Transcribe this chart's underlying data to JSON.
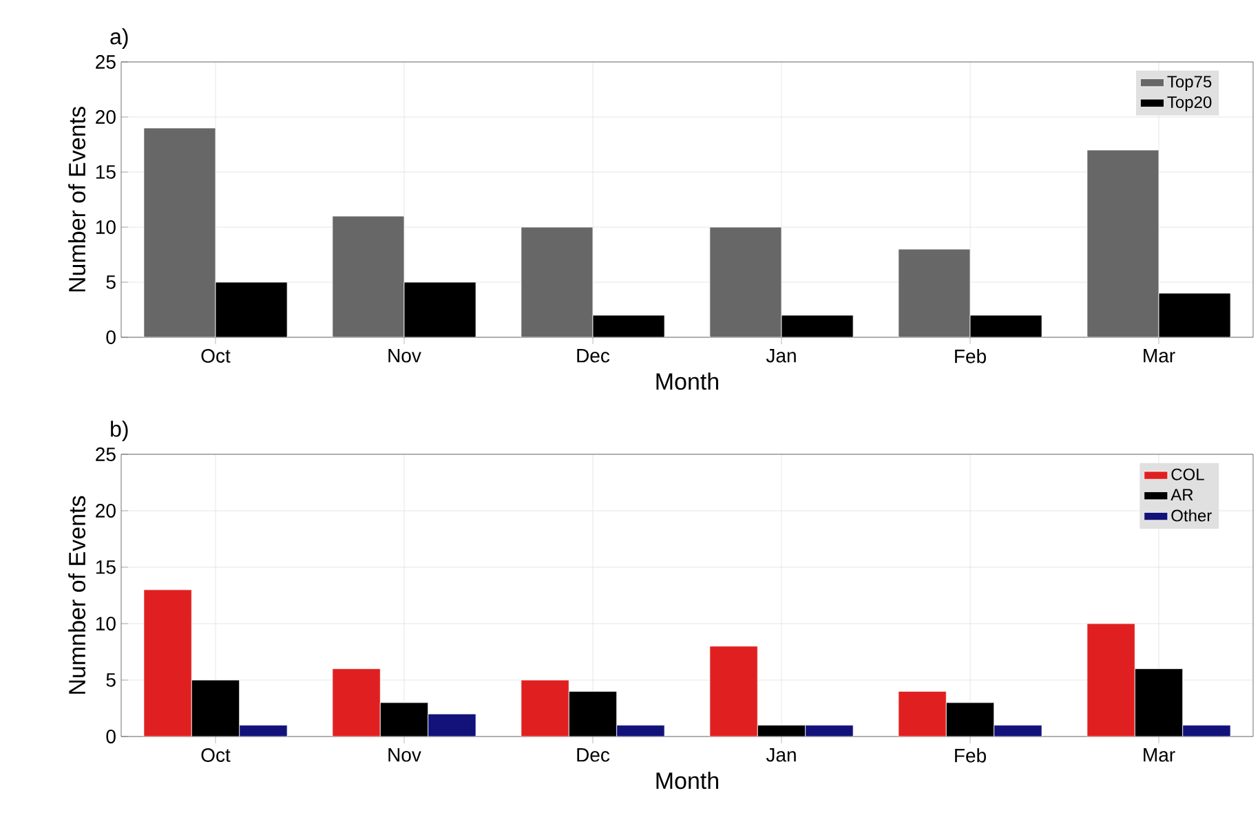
{
  "chart_data": [
    {
      "type": "bar",
      "title": "a)",
      "xlabel": "Month",
      "ylabel": "Number of Events",
      "categories": [
        "Oct",
        "Nov",
        "Dec",
        "Jan",
        "Feb",
        "Mar"
      ],
      "series": [
        {
          "name": "Top75",
          "color": "#676767",
          "values": [
            19,
            11,
            10,
            10,
            8,
            17
          ]
        },
        {
          "name": "Top20",
          "color": "#000000",
          "values": [
            5,
            5,
            2,
            2,
            2,
            4
          ]
        }
      ],
      "ylim": [
        0,
        25
      ],
      "yticks": [
        0,
        5,
        10,
        15,
        20,
        25
      ],
      "grid": true,
      "legend": "top right"
    },
    {
      "type": "bar",
      "title": "b)",
      "xlabel": "Month",
      "ylabel": "Numnber of Events",
      "categories": [
        "Oct",
        "Nov",
        "Dec",
        "Jan",
        "Feb",
        "Mar"
      ],
      "series": [
        {
          "name": "COL",
          "color": "#e02020",
          "values": [
            13,
            6,
            5,
            8,
            4,
            10
          ]
        },
        {
          "name": "AR",
          "color": "#000000",
          "values": [
            5,
            3,
            4,
            1,
            3,
            6
          ]
        },
        {
          "name": "Other",
          "color": "#12127a",
          "values": [
            1,
            2,
            1,
            1,
            1,
            1
          ]
        }
      ],
      "ylim": [
        0,
        25
      ],
      "yticks": [
        0,
        5,
        10,
        15,
        20,
        25
      ],
      "grid": true,
      "legend": "top right"
    }
  ]
}
